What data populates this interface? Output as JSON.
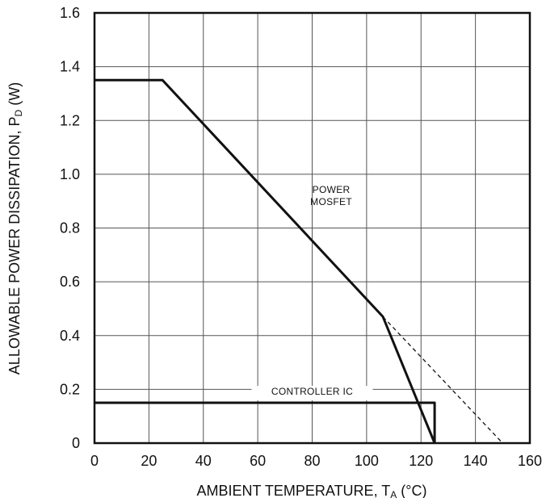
{
  "chart_data": {
    "type": "line",
    "title": "",
    "xlabel": {
      "main": "AMBIENT TEMPERATURE, T",
      "subscript": "A",
      "unit": " (°C)"
    },
    "ylabel": {
      "main": "ALLOWABLE POWER DISSIPATION, P",
      "subscript": "D",
      "unit": " (W)"
    },
    "xlim": [
      0,
      160
    ],
    "ylim": [
      0,
      1.6
    ],
    "x_ticks": [
      {
        "value": 0,
        "label": "0"
      },
      {
        "value": 20,
        "label": "20"
      },
      {
        "value": 40,
        "label": "40"
      },
      {
        "value": 60,
        "label": "60"
      },
      {
        "value": 80,
        "label": "80"
      },
      {
        "value": 100,
        "label": "100"
      },
      {
        "value": 120,
        "label": "120"
      },
      {
        "value": 140,
        "label": "140"
      },
      {
        "value": 160,
        "label": "160"
      }
    ],
    "y_ticks": [
      {
        "value": 0,
        "label": "0"
      },
      {
        "value": 0.2,
        "label": "0.2"
      },
      {
        "value": 0.4,
        "label": "0.4"
      },
      {
        "value": 0.6,
        "label": "0.6"
      },
      {
        "value": 0.8,
        "label": "0.8"
      },
      {
        "value": 1.0,
        "label": "1.0"
      },
      {
        "value": 1.2,
        "label": "1.2"
      },
      {
        "value": 1.4,
        "label": "1.4"
      },
      {
        "value": 1.6,
        "label": "1.6"
      }
    ],
    "grid": true,
    "series": [
      {
        "name": "POWER MOSFET",
        "style": "solid",
        "points": [
          [
            0,
            1.35
          ],
          [
            25,
            1.35
          ],
          [
            106,
            0.47
          ],
          [
            125,
            0.0
          ]
        ]
      },
      {
        "name": "",
        "style": "dashed",
        "points": [
          [
            106,
            0.47
          ],
          [
            150,
            0.0
          ]
        ]
      },
      {
        "name": "CONTROLLER IC",
        "style": "solid",
        "points": [
          [
            0,
            0.15
          ],
          [
            125,
            0.15
          ],
          [
            125,
            0.0
          ]
        ]
      }
    ],
    "annotations": [
      {
        "id": "mosfet",
        "lines": [
          "POWER",
          "MOSFET"
        ],
        "x": 87,
        "y": 0.93
      },
      {
        "id": "controller",
        "lines": [
          "CONTROLLER IC"
        ],
        "x": 80,
        "y": 0.18
      }
    ]
  }
}
